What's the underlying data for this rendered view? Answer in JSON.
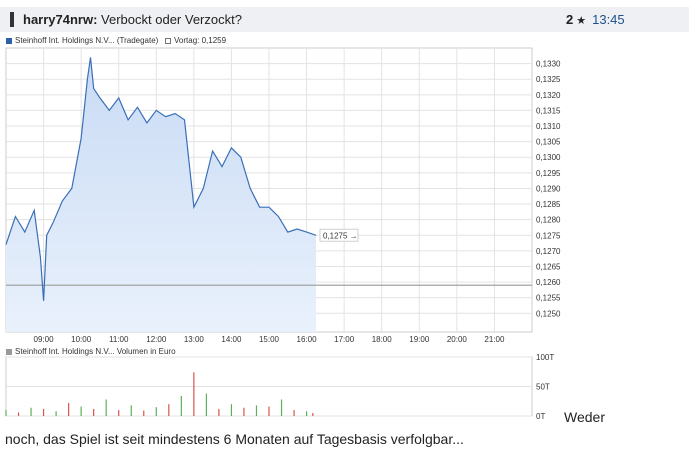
{
  "post": {
    "author": "harry74nrw:",
    "title": "Verbockt oder Verzockt?",
    "rating_count": "2",
    "rating_icon": "star-icon",
    "time": "13:45",
    "body_line1": "Weder",
    "body_line2": "noch, das Spiel ist seit mindestens 6 Monaten auf Tagesbasis verfolgbar..."
  },
  "chart_data": [
    {
      "type": "area",
      "legend": [
        "Steinhoff Int. Holdings N.V... (Tradegate)",
        "Vortag: 0,1259"
      ],
      "last_value_label": "0,1275",
      "x_ticks": [
        "09:00",
        "10:00",
        "11:00",
        "12:00",
        "13:00",
        "14:00",
        "15:00",
        "16:00",
        "17:00",
        "18:00",
        "19:00",
        "20:00",
        "21:00"
      ],
      "y_ticks": [
        "0,1330",
        "0,1325",
        "0,1320",
        "0,1315",
        "0,1310",
        "0,1305",
        "0,1300",
        "0,1295",
        "0,1290",
        "0,1285",
        "0,1280",
        "0,1275",
        "0,1270",
        "0,1265",
        "0,1260",
        "0,1255",
        "0,1250"
      ],
      "ylim": [
        0.1244,
        0.1335
      ],
      "xlim": [
        "08:00",
        "22:00"
      ],
      "previous_close": 0.1259,
      "x": [
        "08:00",
        "08:15",
        "08:30",
        "08:45",
        "08:55",
        "09:00",
        "09:05",
        "09:15",
        "09:30",
        "09:45",
        "10:00",
        "10:10",
        "10:15",
        "10:20",
        "10:30",
        "10:45",
        "11:00",
        "11:15",
        "11:30",
        "11:45",
        "12:00",
        "12:15",
        "12:30",
        "12:45",
        "13:00",
        "13:15",
        "13:30",
        "13:45",
        "14:00",
        "14:15",
        "14:30",
        "14:45",
        "15:00",
        "15:15",
        "15:30",
        "15:45",
        "16:00",
        "16:15"
      ],
      "y": [
        0.1272,
        0.1281,
        0.1276,
        0.1283,
        0.1268,
        0.1254,
        0.1275,
        0.1279,
        0.1286,
        0.129,
        0.1306,
        0.1325,
        0.1332,
        0.1322,
        0.1319,
        0.1315,
        0.1319,
        0.1312,
        0.1316,
        0.1311,
        0.1315,
        0.1313,
        0.1314,
        0.1312,
        0.1284,
        0.129,
        0.1302,
        0.1297,
        0.1303,
        0.13,
        0.129,
        0.1284,
        0.1284,
        0.1281,
        0.1276,
        0.1277,
        0.1276,
        0.1275
      ],
      "colors": {
        "line": "#3a6fb8",
        "fill_top": "#c9dbf4",
        "fill_bottom": "#e9f1fc",
        "prev_close": "#999999"
      }
    },
    {
      "type": "bar",
      "legend": [
        "Steinhoff Int. Holdings N.V... Volumen in Euro"
      ],
      "y_ticks": [
        "100T",
        "50T",
        "0T"
      ],
      "ylim": [
        0,
        100
      ],
      "x": [
        "08:00",
        "08:20",
        "08:40",
        "09:00",
        "09:20",
        "09:40",
        "10:00",
        "10:20",
        "10:40",
        "11:00",
        "11:20",
        "11:40",
        "12:00",
        "12:20",
        "12:40",
        "13:00",
        "13:20",
        "13:40",
        "14:00",
        "14:20",
        "14:40",
        "15:00",
        "15:20",
        "15:40",
        "16:00",
        "16:10"
      ],
      "values": [
        10,
        6,
        14,
        12,
        8,
        22,
        16,
        12,
        28,
        10,
        18,
        9,
        15,
        20,
        34,
        74,
        38,
        12,
        20,
        14,
        18,
        16,
        28,
        10,
        8,
        5
      ],
      "colors": {
        "up": "#5cae5c",
        "down": "#d9534f"
      }
    }
  ]
}
